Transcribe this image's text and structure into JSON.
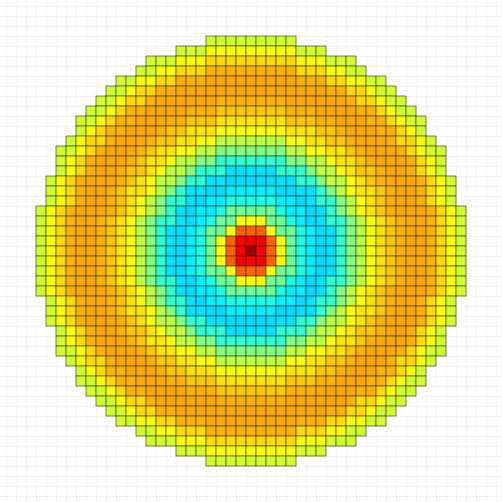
{
  "chart_data": {
    "type": "radial-heatmap",
    "colormap": "jet",
    "grid": true,
    "vlim": [
      0,
      1
    ],
    "rings": [
      0.97,
      0.88,
      0.78,
      0.62,
      0.48,
      0.4,
      0.36,
      0.34,
      0.35,
      0.42,
      0.5,
      0.56,
      0.62,
      0.65,
      0.68,
      0.7,
      0.71,
      0.71,
      0.7,
      0.66,
      0.62,
      0.58
    ]
  }
}
